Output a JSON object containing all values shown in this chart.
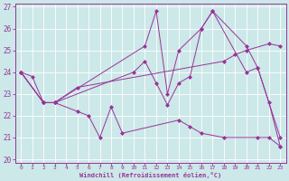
{
  "xlabel": "Windchill (Refroidissement éolien,°C)",
  "xlim": [
    0,
    23
  ],
  "ylim": [
    20,
    27
  ],
  "xticks": [
    0,
    1,
    2,
    3,
    4,
    5,
    6,
    7,
    8,
    9,
    10,
    11,
    12,
    13,
    14,
    15,
    16,
    17,
    18,
    19,
    20,
    21,
    22,
    23
  ],
  "yticks": [
    20,
    21,
    22,
    23,
    24,
    25,
    26,
    27
  ],
  "background_color": "#cce8e8",
  "grid_color": "#ffffff",
  "line_color": "#993399",
  "lines": [
    {
      "x": [
        0,
        2,
        3,
        5,
        18,
        19,
        20,
        22,
        23
      ],
      "y": [
        24.0,
        22.6,
        22.6,
        23.3,
        24.5,
        24.8,
        25.0,
        25.3,
        25.2
      ]
    },
    {
      "x": [
        0,
        2,
        3,
        11,
        12,
        13,
        14,
        16,
        17,
        20,
        21,
        23
      ],
      "y": [
        24.0,
        22.6,
        22.6,
        25.2,
        26.8,
        23.0,
        25.0,
        26.0,
        26.8,
        25.2,
        24.2,
        21.0
      ]
    },
    {
      "x": [
        0,
        2,
        3,
        10,
        11,
        12,
        13,
        14,
        15,
        16,
        17,
        20,
        21,
        22,
        23
      ],
      "y": [
        24.0,
        22.6,
        22.6,
        24.0,
        24.5,
        23.5,
        22.5,
        23.5,
        23.8,
        26.0,
        26.8,
        24.0,
        24.2,
        22.6,
        20.6
      ]
    },
    {
      "x": [
        0,
        1,
        2,
        3,
        5,
        6,
        7,
        8,
        9,
        14,
        15,
        16,
        18,
        21,
        22,
        23
      ],
      "y": [
        24.0,
        23.8,
        22.6,
        22.6,
        22.2,
        22.0,
        21.0,
        22.4,
        21.2,
        21.8,
        21.5,
        21.2,
        21.0,
        21.0,
        21.0,
        20.6
      ]
    }
  ]
}
